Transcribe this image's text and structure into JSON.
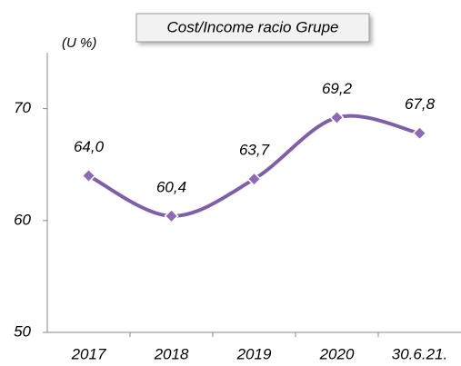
{
  "chart_data": {
    "type": "line",
    "title": "Cost/Income racio Grupe",
    "y_label": "(U %)",
    "categories": [
      "2017",
      "2018",
      "2019",
      "2020",
      "30.6.21."
    ],
    "series": [
      {
        "name": "Cost/Income",
        "color": "#7d5fae",
        "values": [
          64.0,
          60.4,
          63.7,
          69.2,
          67.8
        ],
        "value_labels": [
          "64,0",
          "60,4",
          "63,7",
          "69,2",
          "67,8"
        ]
      }
    ],
    "ylim": [
      50,
      75
    ],
    "yticks": [
      50,
      60,
      70
    ],
    "grid": false,
    "legend": false
  }
}
